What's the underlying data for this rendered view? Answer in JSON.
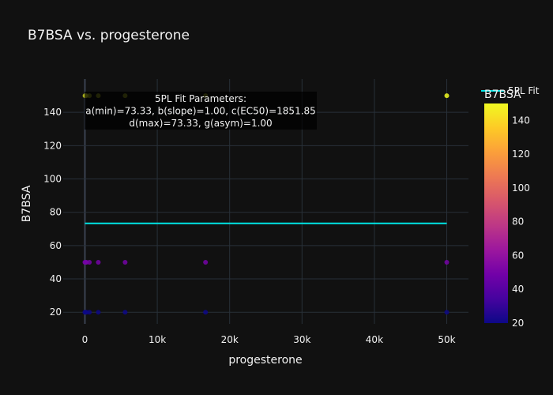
{
  "chart_data": {
    "type": "scatter",
    "title": "B7BSA vs. progesterone",
    "xlabel": "progesterone",
    "ylabel": "B7BSA",
    "xlim": [
      -3000,
      53000
    ],
    "ylim": [
      13,
      160
    ],
    "x_ticks": [
      {
        "value": 0,
        "label": "0"
      },
      {
        "value": 10000,
        "label": "10k"
      },
      {
        "value": 20000,
        "label": "20k"
      },
      {
        "value": 30000,
        "label": "30k"
      },
      {
        "value": 40000,
        "label": "40k"
      },
      {
        "value": 50000,
        "label": "50k"
      }
    ],
    "y_ticks": [
      20,
      40,
      60,
      80,
      100,
      120,
      140
    ],
    "grid": true,
    "colorbar": {
      "title": "B7BSA",
      "min": 20,
      "max": 150,
      "ticks": [
        20,
        40,
        60,
        80,
        100,
        120,
        140
      ],
      "colors": [
        "#0d0887",
        "#46039f",
        "#7201a8",
        "#9c179e",
        "#bd3786",
        "#d8576b",
        "#ed7953",
        "#fb9f3a",
        "#fdca26",
        "#f0f921"
      ]
    },
    "series": [
      {
        "type": "scatter",
        "points": [
          {
            "x": 0,
            "y": 150
          },
          {
            "x": 69,
            "y": 150
          },
          {
            "x": 206,
            "y": 150
          },
          {
            "x": 617,
            "y": 150
          },
          {
            "x": 1852,
            "y": 150
          },
          {
            "x": 5556,
            "y": 150
          },
          {
            "x": 16667,
            "y": 150
          },
          {
            "x": 50000,
            "y": 150
          },
          {
            "x": 0,
            "y": 50
          },
          {
            "x": 69,
            "y": 50
          },
          {
            "x": 206,
            "y": 50
          },
          {
            "x": 617,
            "y": 50
          },
          {
            "x": 1852,
            "y": 50
          },
          {
            "x": 5556,
            "y": 50
          },
          {
            "x": 16667,
            "y": 50
          },
          {
            "x": 50000,
            "y": 50
          },
          {
            "x": 0,
            "y": 20
          },
          {
            "x": 69,
            "y": 20
          },
          {
            "x": 206,
            "y": 20
          },
          {
            "x": 617,
            "y": 20
          },
          {
            "x": 1852,
            "y": 20
          },
          {
            "x": 5556,
            "y": 20
          },
          {
            "x": 16667,
            "y": 20
          },
          {
            "x": 50000,
            "y": 20
          }
        ]
      },
      {
        "name": "5PL Fit",
        "type": "line",
        "color": "#00e5e5",
        "x": [
          0,
          50000
        ],
        "y": [
          73.33,
          73.33
        ]
      }
    ],
    "legend": {
      "position": "top-right",
      "entries": [
        "5PL Fit"
      ]
    },
    "annotation": {
      "lines": [
        "5PL Fit Parameters:",
        "a(min)=73.33, b(slope)=1.00, c(EC50)=1851.85",
        "d(max)=73.33, g(asym)=1.00"
      ]
    }
  }
}
